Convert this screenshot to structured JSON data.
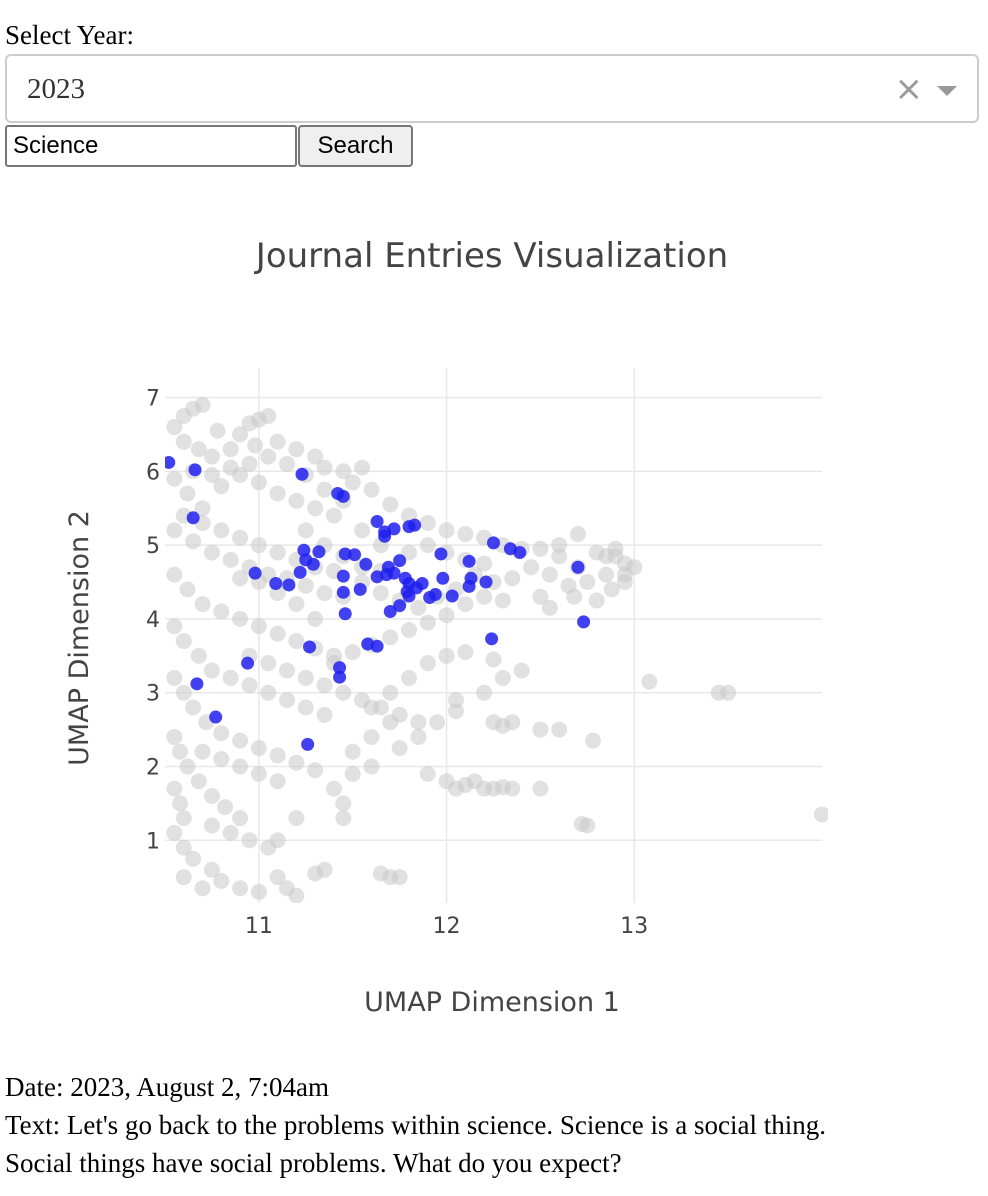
{
  "year_selector": {
    "label": "Select Year:",
    "value": "2023",
    "clear_icon": "clear-x-icon",
    "dropdown_icon": "caret-down-icon"
  },
  "search": {
    "input_value": "Science",
    "button_label": "Search"
  },
  "chart_data": {
    "type": "scatter",
    "title": "Journal Entries Visualization",
    "xlabel": "UMAP Dimension 1",
    "ylabel": "UMAP Dimension 2",
    "xlim": [
      10.5,
      14.0
    ],
    "ylim": [
      0.15,
      7.4
    ],
    "xticks": [
      11,
      12,
      13
    ],
    "yticks": [
      1,
      2,
      3,
      4,
      5,
      6,
      7
    ],
    "grid": true,
    "series": [
      {
        "color": "#c8c8c8",
        "opacity": 0.55,
        "points": [
          [
            10.55,
            6.6
          ],
          [
            10.6,
            6.75
          ],
          [
            10.65,
            6.85
          ],
          [
            10.7,
            6.9
          ],
          [
            10.78,
            6.55
          ],
          [
            10.85,
            6.3
          ],
          [
            10.9,
            6.5
          ],
          [
            10.6,
            6.4
          ],
          [
            10.68,
            6.3
          ],
          [
            10.75,
            6.2
          ],
          [
            10.95,
            6.65
          ],
          [
            11.0,
            6.7
          ],
          [
            11.05,
            6.75
          ],
          [
            10.98,
            6.35
          ],
          [
            11.1,
            6.4
          ],
          [
            11.2,
            6.3
          ],
          [
            11.3,
            6.2
          ],
          [
            11.35,
            6.05
          ],
          [
            11.45,
            6.0
          ],
          [
            11.55,
            6.05
          ],
          [
            11.5,
            5.85
          ],
          [
            11.6,
            5.75
          ],
          [
            11.7,
            5.55
          ],
          [
            11.8,
            5.4
          ],
          [
            11.9,
            5.3
          ],
          [
            12.0,
            5.2
          ],
          [
            12.1,
            5.15
          ],
          [
            12.2,
            5.1
          ],
          [
            12.3,
            5.0
          ],
          [
            12.4,
            4.95
          ],
          [
            12.5,
            4.95
          ],
          [
            12.6,
            5.0
          ],
          [
            12.7,
            5.15
          ],
          [
            12.8,
            4.9
          ],
          [
            12.9,
            4.85
          ],
          [
            12.95,
            4.75
          ],
          [
            12.85,
            4.6
          ],
          [
            12.75,
            4.5
          ],
          [
            12.65,
            4.45
          ],
          [
            12.55,
            4.6
          ],
          [
            12.45,
            4.7
          ],
          [
            12.35,
            4.55
          ],
          [
            12.25,
            4.5
          ],
          [
            12.15,
            4.6
          ],
          [
            12.05,
            4.4
          ],
          [
            11.95,
            4.3
          ],
          [
            11.85,
            4.15
          ],
          [
            11.75,
            4.25
          ],
          [
            11.65,
            4.35
          ],
          [
            11.55,
            4.5
          ],
          [
            10.55,
            5.9
          ],
          [
            10.62,
            5.7
          ],
          [
            10.7,
            5.5
          ],
          [
            10.8,
            5.8
          ],
          [
            10.9,
            5.95
          ],
          [
            11.0,
            5.85
          ],
          [
            11.1,
            5.7
          ],
          [
            11.2,
            5.6
          ],
          [
            11.3,
            5.5
          ],
          [
            11.4,
            5.4
          ],
          [
            10.55,
            5.2
          ],
          [
            10.65,
            5.05
          ],
          [
            10.75,
            4.9
          ],
          [
            10.85,
            4.8
          ],
          [
            10.95,
            4.7
          ],
          [
            11.05,
            4.6
          ],
          [
            11.15,
            4.55
          ],
          [
            11.25,
            4.45
          ],
          [
            11.35,
            4.35
          ],
          [
            11.45,
            4.3
          ],
          [
            10.55,
            4.6
          ],
          [
            10.62,
            4.4
          ],
          [
            10.7,
            4.2
          ],
          [
            10.8,
            4.1
          ],
          [
            10.9,
            4.0
          ],
          [
            11.0,
            3.9
          ],
          [
            11.1,
            3.8
          ],
          [
            11.2,
            3.7
          ],
          [
            11.3,
            3.6
          ],
          [
            11.4,
            3.5
          ],
          [
            10.55,
            3.9
          ],
          [
            10.6,
            3.7
          ],
          [
            10.68,
            3.5
          ],
          [
            10.75,
            3.3
          ],
          [
            10.85,
            3.2
          ],
          [
            10.95,
            3.1
          ],
          [
            11.05,
            3.0
          ],
          [
            11.15,
            2.9
          ],
          [
            11.25,
            2.8
          ],
          [
            11.35,
            2.7
          ],
          [
            10.55,
            3.2
          ],
          [
            10.6,
            3.0
          ],
          [
            10.65,
            2.8
          ],
          [
            10.72,
            2.6
          ],
          [
            10.8,
            2.45
          ],
          [
            10.9,
            2.35
          ],
          [
            11.0,
            2.25
          ],
          [
            11.1,
            2.15
          ],
          [
            11.2,
            2.05
          ],
          [
            11.3,
            1.95
          ],
          [
            10.55,
            2.4
          ],
          [
            10.58,
            2.2
          ],
          [
            10.62,
            2.0
          ],
          [
            10.68,
            1.8
          ],
          [
            10.75,
            1.6
          ],
          [
            10.82,
            1.45
          ],
          [
            10.9,
            1.3
          ],
          [
            10.55,
            1.7
          ],
          [
            10.58,
            1.5
          ],
          [
            10.6,
            1.3
          ],
          [
            10.55,
            1.1
          ],
          [
            10.6,
            0.9
          ],
          [
            10.65,
            0.75
          ],
          [
            10.75,
            0.6
          ],
          [
            10.8,
            0.45
          ],
          [
            10.9,
            0.35
          ],
          [
            11.0,
            0.3
          ],
          [
            11.1,
            0.5
          ],
          [
            11.15,
            0.35
          ],
          [
            11.2,
            0.25
          ],
          [
            11.3,
            0.55
          ],
          [
            11.35,
            0.6
          ],
          [
            11.65,
            0.55
          ],
          [
            11.7,
            0.5
          ],
          [
            11.75,
            0.5
          ],
          [
            11.1,
            1.0
          ],
          [
            11.2,
            1.3
          ],
          [
            11.45,
            1.3
          ],
          [
            11.45,
            1.5
          ],
          [
            11.4,
            1.7
          ],
          [
            11.5,
            1.9
          ],
          [
            11.6,
            2.0
          ],
          [
            11.5,
            2.2
          ],
          [
            11.6,
            2.4
          ],
          [
            11.7,
            2.6
          ],
          [
            11.6,
            2.8
          ],
          [
            11.7,
            3.0
          ],
          [
            11.8,
            3.2
          ],
          [
            11.9,
            3.4
          ],
          [
            12.0,
            3.5
          ],
          [
            11.75,
            2.25
          ],
          [
            11.85,
            2.4
          ],
          [
            11.95,
            2.6
          ],
          [
            12.05,
            2.75
          ],
          [
            12.05,
            2.9
          ],
          [
            12.2,
            3.0
          ],
          [
            12.3,
            3.2
          ],
          [
            12.4,
            3.3
          ],
          [
            12.25,
            3.45
          ],
          [
            12.1,
            3.55
          ],
          [
            11.9,
            1.9
          ],
          [
            12.0,
            1.8
          ],
          [
            12.05,
            1.7
          ],
          [
            12.1,
            1.75
          ],
          [
            12.15,
            1.8
          ],
          [
            12.2,
            1.7
          ],
          [
            12.25,
            1.7
          ],
          [
            12.3,
            1.72
          ],
          [
            12.35,
            1.7
          ],
          [
            12.5,
            1.7
          ],
          [
            12.3,
            2.55
          ],
          [
            12.35,
            2.6
          ],
          [
            12.5,
            2.5
          ],
          [
            12.6,
            2.5
          ],
          [
            12.25,
            2.6
          ],
          [
            12.75,
            1.2
          ],
          [
            12.72,
            1.22
          ],
          [
            12.78,
            2.35
          ],
          [
            13.08,
            3.15
          ],
          [
            13.45,
            3.0
          ],
          [
            13.5,
            3.0
          ],
          [
            14.0,
            1.35
          ],
          [
            12.55,
            4.15
          ],
          [
            12.68,
            4.3
          ],
          [
            12.8,
            4.25
          ],
          [
            12.88,
            4.4
          ],
          [
            12.95,
            4.5
          ],
          [
            12.85,
            4.85
          ],
          [
            12.7,
            4.7
          ],
          [
            12.6,
            4.85
          ],
          [
            12.3,
            4.25
          ],
          [
            12.2,
            4.3
          ],
          [
            12.1,
            4.2
          ],
          [
            12.0,
            4.05
          ],
          [
            11.9,
            3.95
          ],
          [
            11.8,
            3.85
          ],
          [
            11.7,
            3.75
          ],
          [
            11.6,
            3.65
          ],
          [
            11.5,
            3.55
          ],
          [
            11.4,
            3.4
          ],
          [
            11.2,
            4.2
          ],
          [
            11.3,
            4.0
          ],
          [
            11.1,
            4.35
          ],
          [
            11.0,
            4.5
          ],
          [
            10.9,
            4.55
          ],
          [
            11.25,
            5.2
          ],
          [
            11.35,
            5.0
          ],
          [
            11.45,
            4.85
          ],
          [
            11.55,
            4.7
          ],
          [
            11.65,
            4.65
          ],
          [
            11.8,
            4.9
          ],
          [
            11.9,
            5.0
          ],
          [
            12.0,
            4.9
          ],
          [
            12.1,
            4.8
          ],
          [
            12.2,
            4.75
          ],
          [
            11.55,
            5.2
          ],
          [
            11.65,
            5.0
          ],
          [
            11.45,
            5.6
          ],
          [
            11.35,
            5.75
          ],
          [
            11.25,
            5.95
          ],
          [
            11.15,
            6.1
          ],
          [
            11.05,
            6.2
          ],
          [
            10.95,
            6.1
          ],
          [
            10.85,
            6.05
          ],
          [
            10.75,
            5.95
          ],
          [
            10.65,
            6.0
          ],
          [
            10.6,
            5.4
          ],
          [
            10.7,
            5.3
          ],
          [
            10.8,
            5.2
          ],
          [
            10.9,
            5.1
          ],
          [
            11.0,
            5.0
          ],
          [
            11.1,
            4.9
          ],
          [
            11.2,
            4.8
          ],
          [
            11.3,
            4.7
          ],
          [
            11.4,
            4.65
          ],
          [
            10.95,
            3.5
          ],
          [
            11.05,
            3.4
          ],
          [
            11.15,
            3.3
          ],
          [
            11.25,
            3.2
          ],
          [
            11.35,
            3.1
          ],
          [
            11.45,
            3.0
          ],
          [
            11.55,
            2.9
          ],
          [
            11.65,
            2.8
          ],
          [
            11.75,
            2.7
          ],
          [
            11.85,
            2.6
          ],
          [
            10.7,
            2.2
          ],
          [
            10.8,
            2.1
          ],
          [
            10.9,
            2.0
          ],
          [
            11.0,
            1.9
          ],
          [
            11.1,
            1.8
          ],
          [
            10.75,
            1.2
          ],
          [
            10.85,
            1.1
          ],
          [
            10.95,
            1.0
          ],
          [
            11.05,
            0.9
          ],
          [
            10.6,
            0.5
          ],
          [
            10.7,
            0.35
          ],
          [
            12.95,
            4.6
          ],
          [
            12.9,
            4.95
          ],
          [
            13.0,
            4.7
          ],
          [
            12.5,
            4.3
          ]
        ]
      },
      {
        "color": "#2020ee",
        "opacity": 0.85,
        "points": [
          [
            10.52,
            6.12
          ],
          [
            10.66,
            6.02
          ],
          [
            10.65,
            5.37
          ],
          [
            11.23,
            5.96
          ],
          [
            11.42,
            5.7
          ],
          [
            11.45,
            5.66
          ],
          [
            11.63,
            5.32
          ],
          [
            11.67,
            5.18
          ],
          [
            11.72,
            5.22
          ],
          [
            11.8,
            5.25
          ],
          [
            11.83,
            5.27
          ],
          [
            11.67,
            5.12
          ],
          [
            11.24,
            4.93
          ],
          [
            11.32,
            4.91
          ],
          [
            11.46,
            4.88
          ],
          [
            11.51,
            4.87
          ],
          [
            11.25,
            4.8
          ],
          [
            11.29,
            4.74
          ],
          [
            11.22,
            4.63
          ],
          [
            11.57,
            4.74
          ],
          [
            11.69,
            4.7
          ],
          [
            11.75,
            4.79
          ],
          [
            11.63,
            4.57
          ],
          [
            11.68,
            4.6
          ],
          [
            11.72,
            4.62
          ],
          [
            11.45,
            4.58
          ],
          [
            11.54,
            4.4
          ],
          [
            11.45,
            4.36
          ],
          [
            11.78,
            4.55
          ],
          [
            11.8,
            4.48
          ],
          [
            11.84,
            4.42
          ],
          [
            11.87,
            4.48
          ],
          [
            11.79,
            4.37
          ],
          [
            11.8,
            4.31
          ],
          [
            11.91,
            4.29
          ],
          [
            11.94,
            4.33
          ],
          [
            11.98,
            4.55
          ],
          [
            12.03,
            4.31
          ],
          [
            11.7,
            4.1
          ],
          [
            11.75,
            4.18
          ],
          [
            11.46,
            4.07
          ],
          [
            11.97,
            4.88
          ],
          [
            12.12,
            4.78
          ],
          [
            12.12,
            4.44
          ],
          [
            12.13,
            4.55
          ],
          [
            12.21,
            4.5
          ],
          [
            12.25,
            5.03
          ],
          [
            12.34,
            4.95
          ],
          [
            12.39,
            4.9
          ],
          [
            12.7,
            4.7
          ],
          [
            12.73,
            3.96
          ],
          [
            12.24,
            3.73
          ],
          [
            11.58,
            3.66
          ],
          [
            11.63,
            3.63
          ],
          [
            11.27,
            3.62
          ],
          [
            11.43,
            3.34
          ],
          [
            11.43,
            3.21
          ],
          [
            10.94,
            3.4
          ],
          [
            10.67,
            3.12
          ],
          [
            10.77,
            2.67
          ],
          [
            11.26,
            2.3
          ],
          [
            10.98,
            4.62
          ],
          [
            11.09,
            4.48
          ],
          [
            11.16,
            4.46
          ]
        ]
      }
    ]
  },
  "entry": {
    "date_line": "Date: 2023, August 2, 7:04am",
    "text_line_1": "Text: Let's go back to the problems within science. Science is a social thing.",
    "text_line_2": "Social things have social problems. What do you expect?"
  }
}
